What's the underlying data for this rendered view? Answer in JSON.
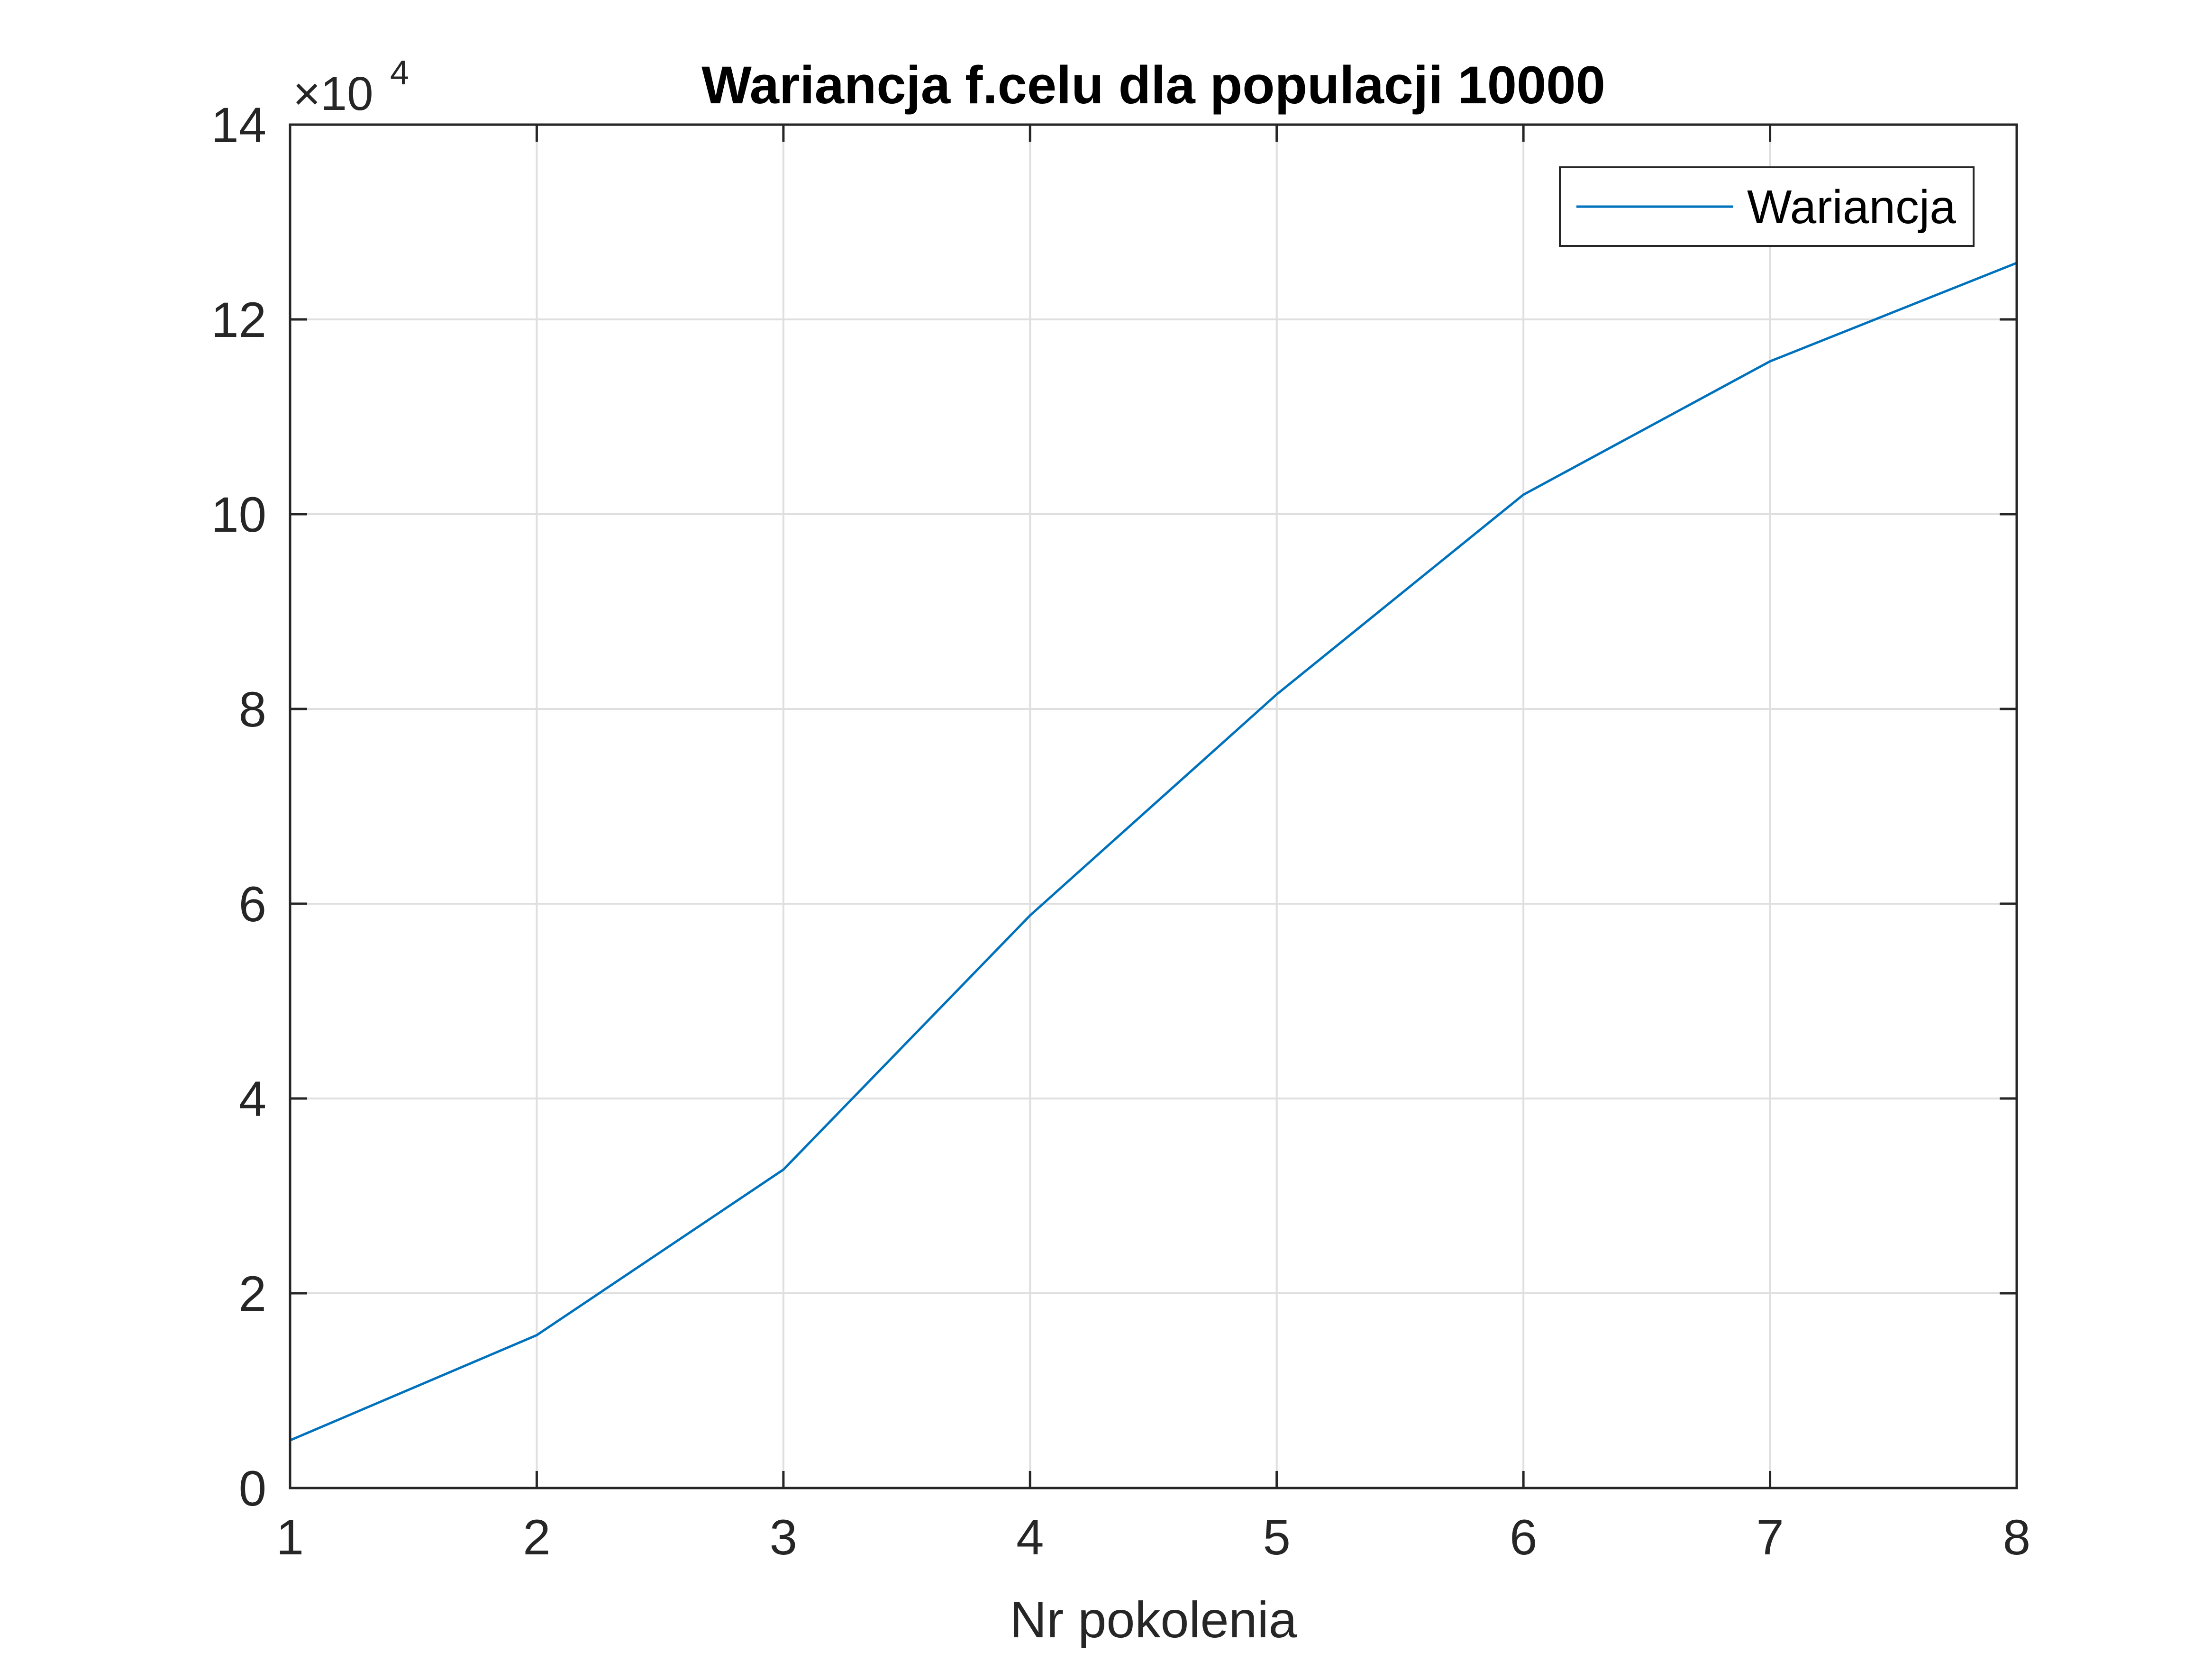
{
  "chart_data": {
    "type": "line",
    "title": "Wariancja f.celu dla populacji 10000",
    "xlabel": "Nr pokolenia",
    "ylabel": "",
    "x": [
      1,
      2,
      3,
      4,
      5,
      6,
      7,
      8
    ],
    "series": [
      {
        "name": "Wariancja",
        "values": [
          4900,
          15700,
          32700,
          58800,
          81500,
          102000,
          115700,
          125800
        ],
        "color": "#0072BD"
      }
    ],
    "xlim": [
      1,
      8
    ],
    "ylim": [
      0,
      140000
    ],
    "xticks": [
      1,
      2,
      3,
      4,
      5,
      6,
      7,
      8
    ],
    "xtick_labels": [
      "1",
      "2",
      "3",
      "4",
      "5",
      "6",
      "7",
      "8"
    ],
    "yticks": [
      0,
      20000,
      40000,
      60000,
      80000,
      100000,
      120000,
      140000
    ],
    "ytick_labels": [
      "0",
      "2",
      "4",
      "6",
      "8",
      "10",
      "12",
      "14"
    ],
    "y_exponent_label": {
      "prefix": "×10",
      "power": "4"
    },
    "grid": true,
    "legend_position": "top-right",
    "colors": {
      "axes": "#262626",
      "grid": "#dfdfdf",
      "title": "#000000"
    }
  }
}
